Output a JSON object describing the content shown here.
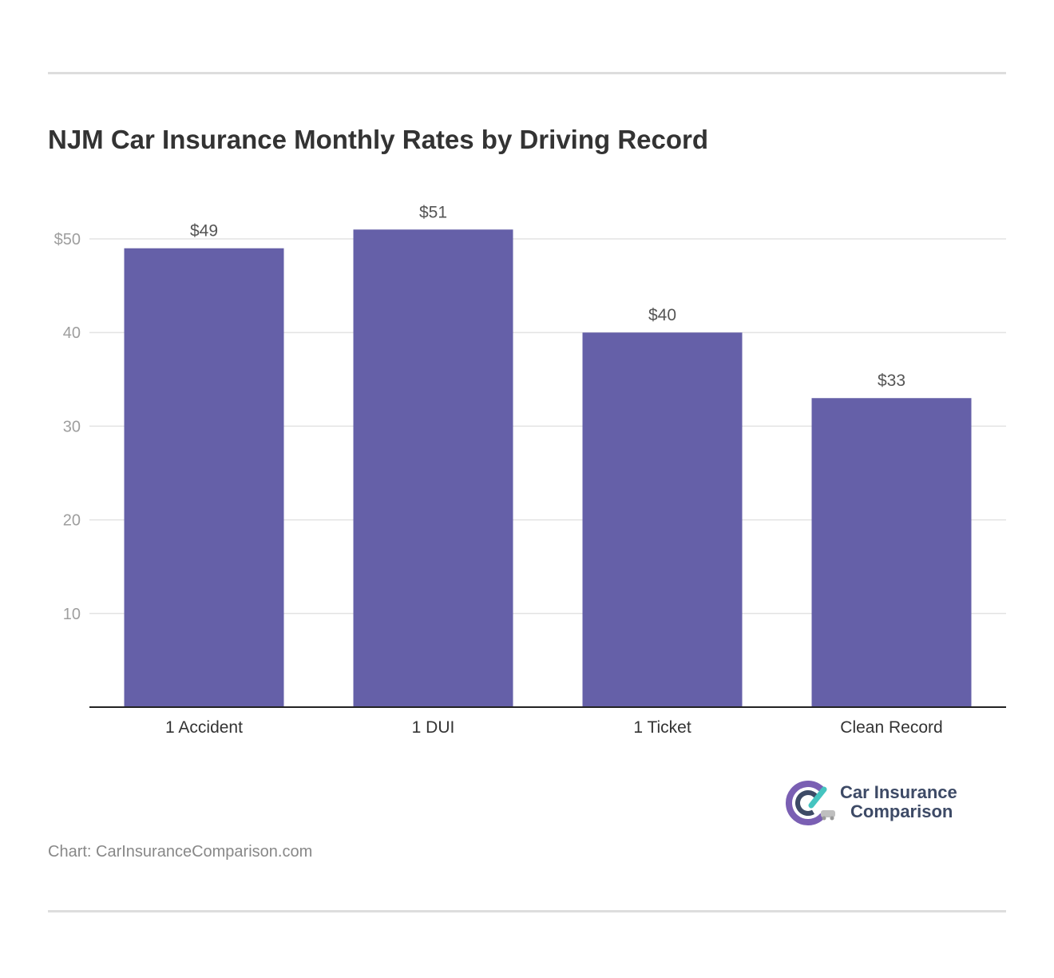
{
  "title": "NJM Car Insurance Monthly Rates by Driving Record",
  "chart_data": {
    "type": "bar",
    "categories": [
      "1 Accident",
      "1 DUI",
      "1 Ticket",
      "Clean Record"
    ],
    "values": [
      49,
      51,
      40,
      33
    ],
    "value_labels": [
      "$49",
      "$51",
      "$40",
      "$33"
    ],
    "y_ticks": [
      10,
      20,
      30,
      40,
      50
    ],
    "y_tick_labels": [
      "10",
      "20",
      "30",
      "40",
      "$50"
    ],
    "ylim": [
      0,
      51
    ],
    "xlabel": "",
    "ylabel": "",
    "grid": true,
    "bar_color": "#6560a8"
  },
  "brand": {
    "line1": "Car Insurance",
    "line2": "Comparison",
    "colors": {
      "navy": "#3d4a66",
      "teal": "#45c4c0",
      "purple": "#7a5fb3"
    }
  },
  "source": "Chart: CarInsuranceComparison.com"
}
